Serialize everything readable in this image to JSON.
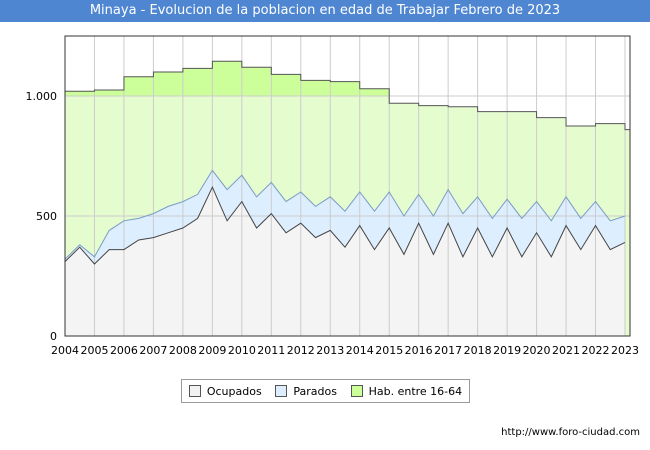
{
  "chart_data": {
    "type": "area",
    "title": "Minaya - Evolucion de la poblacion en edad de Trabajar Febrero de 2023",
    "xlabel": "",
    "ylabel": "",
    "xlim": [
      2004,
      2023.17
    ],
    "ylim": [
      0,
      1250
    ],
    "yticks": [
      0,
      500,
      1000
    ],
    "ytick_labels": [
      "0",
      "500",
      "1.000"
    ],
    "xticks": [
      2004,
      2005,
      2006,
      2007,
      2008,
      2009,
      2010,
      2011,
      2012,
      2013,
      2014,
      2015,
      2016,
      2017,
      2018,
      2019,
      2020,
      2021,
      2022,
      2023
    ],
    "xtick_labels": [
      "2004",
      "2005",
      "2006",
      "2007",
      "2008",
      "2009",
      "2010",
      "2011",
      "2012",
      "2013",
      "2014",
      "2015",
      "2016",
      "2017",
      "2018",
      "2019",
      "2020",
      "2021",
      "2022",
      "2023"
    ],
    "grid": true,
    "legend_position": "bottom",
    "series": [
      {
        "name": "Hab. entre 16-64",
        "color": "#ccff99",
        "fill": "#e5fccf",
        "stroke": "#555555",
        "x": [
          2004,
          2005,
          2006,
          2007,
          2008,
          2009,
          2010,
          2011,
          2012,
          2013,
          2014,
          2015,
          2016,
          2017,
          2018,
          2019,
          2020,
          2021,
          2022,
          2023
        ],
        "values": [
          1020,
          1025,
          1080,
          1100,
          1115,
          1145,
          1120,
          1090,
          1065,
          1060,
          1030,
          970,
          960,
          955,
          935,
          935,
          910,
          875,
          885,
          860
        ]
      },
      {
        "name": "Parados",
        "color": "#ddeeff",
        "fill": "#ddeeff",
        "stroke": "#7a9cc4",
        "x": [
          2004,
          2004.5,
          2005,
          2005.5,
          2006,
          2006.5,
          2007,
          2007.5,
          2008,
          2008.5,
          2009,
          2009.5,
          2010,
          2010.5,
          2011,
          2011.5,
          2012,
          2012.5,
          2013,
          2013.5,
          2014,
          2014.5,
          2015,
          2015.5,
          2016,
          2016.5,
          2017,
          2017.5,
          2018,
          2018.5,
          2019,
          2019.5,
          2020,
          2020.5,
          2021,
          2021.5,
          2022,
          2022.5,
          2023
        ],
        "values": [
          320,
          380,
          330,
          440,
          480,
          490,
          510,
          540,
          560,
          590,
          690,
          610,
          670,
          580,
          640,
          560,
          600,
          540,
          580,
          520,
          600,
          520,
          600,
          500,
          590,
          500,
          610,
          510,
          580,
          490,
          570,
          490,
          560,
          480,
          580,
          490,
          560,
          480,
          500
        ]
      },
      {
        "name": "Ocupados",
        "color": "#f2f2f2",
        "fill": "#f4f4f4",
        "stroke": "#444444",
        "x": [
          2004,
          2004.5,
          2005,
          2005.5,
          2006,
          2006.5,
          2007,
          2007.5,
          2008,
          2008.5,
          2009,
          2009.5,
          2010,
          2010.5,
          2011,
          2011.5,
          2012,
          2012.5,
          2013,
          2013.5,
          2014,
          2014.5,
          2015,
          2015.5,
          2016,
          2016.5,
          2017,
          2017.5,
          2018,
          2018.5,
          2019,
          2019.5,
          2020,
          2020.5,
          2021,
          2021.5,
          2022,
          2022.5,
          2023
        ],
        "values": [
          310,
          370,
          300,
          360,
          360,
          400,
          410,
          430,
          450,
          490,
          620,
          480,
          560,
          450,
          510,
          430,
          470,
          410,
          440,
          370,
          460,
          360,
          450,
          340,
          470,
          340,
          470,
          330,
          450,
          330,
          450,
          330,
          430,
          330,
          460,
          360,
          460,
          360,
          390
        ]
      }
    ]
  },
  "legend": {
    "items": [
      {
        "label": "Ocupados",
        "color": "#f2f2f2"
      },
      {
        "label": "Parados",
        "color": "#ddeeff"
      },
      {
        "label": "Hab. entre 16-64",
        "color": "#ccff99"
      }
    ]
  },
  "source": "http://www.foro-ciudad.com"
}
